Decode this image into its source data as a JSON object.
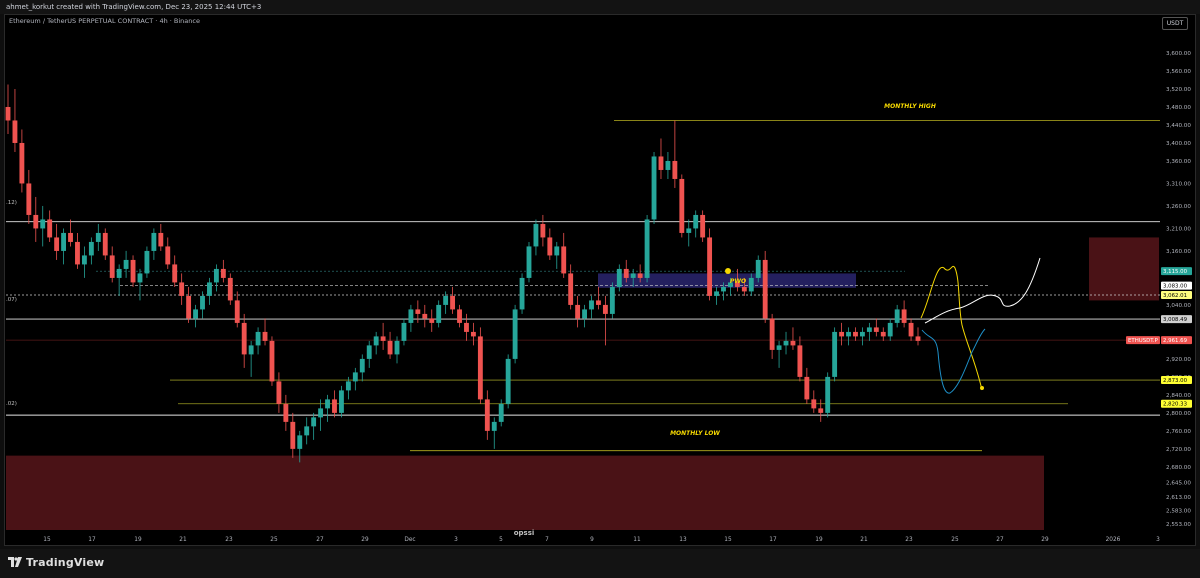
{
  "header": {
    "credit": "ahmet_korkut created with TradingView.com, Dec 23, 2025 12:44 UTC+3"
  },
  "legend": {
    "title": "Ethereum / TetherUS PERPETUAL CONTRACT · 4h · Binance"
  },
  "currency_button": "USDT",
  "footer": {
    "brand": "TradingView"
  },
  "colors": {
    "up": "#26a69a",
    "down": "#ef5350",
    "zone": "#4a1216",
    "fvg": "#2a2670",
    "level_yellow": "#cccc33",
    "background": "#000000"
  },
  "chart_data": {
    "type": "candlestick",
    "price_axis": {
      "ticks": [
        "3,600.00",
        "3,560.00",
        "3,520.00",
        "3,480.00",
        "3,440.00",
        "3,400.00",
        "3,360.00",
        "3,310.00",
        "3,260.00",
        "3,210.00",
        "3,160.00",
        "3,040.00",
        "2,920.00",
        "2,880.00",
        "2,840.00",
        "2,800.00",
        "2,760.00",
        "2,720.00",
        "2,680.00",
        "2,645.00",
        "2,613.00",
        "2,583.00",
        "2,553.00"
      ]
    },
    "time_axis": {
      "ticks": [
        "15",
        "17",
        "19",
        "21",
        "23",
        "25",
        "27",
        "29",
        "Dec",
        "3",
        "5",
        "7",
        "9",
        "11",
        "13",
        "15",
        "17",
        "19",
        "21",
        "23",
        "25",
        "27",
        "29",
        "2026",
        "3"
      ]
    },
    "price_labels": [
      {
        "text": "3,115.00",
        "color": "#26a69a"
      },
      {
        "text": "3,083.00",
        "color": "#ffffff"
      },
      {
        "text": "3,062.01",
        "color": "#ffff80"
      },
      {
        "text": "3,008.49",
        "color": "#d0d0d0"
      },
      {
        "text": "ETHUSDT.P",
        "color": "#ef5350"
      },
      {
        "text": "2,961.69",
        "color": "#ef5350"
      },
      {
        "text": "2,873.00",
        "color": "#ffff33"
      },
      {
        "text": "2,820.33",
        "color": "#ffff33"
      }
    ],
    "left_cut_labels": [
      ".12)",
      ".07)",
      ".02)"
    ],
    "annotations": {
      "monthly_high": "MONTHLY HIGH",
      "monthly_low": "MONTHLY LOW",
      "pwo": "PWO",
      "bottom_cut": "opssi"
    },
    "levels": {
      "monthly_high": 3450,
      "monthly_low": 2716,
      "white_top": 3225,
      "white_mid": 3008.49,
      "white_low": 2795,
      "yellow_upper": 2873,
      "yellow_lower": 2820.33,
      "dotted": 3062.01,
      "dashed_teal": 3115,
      "red_thin": 2961.69,
      "fvg_top": 3110,
      "fvg_bottom": 3078
    },
    "candles": [
      [
        3480,
        3530,
        3420,
        3450
      ],
      [
        3450,
        3520,
        3380,
        3400
      ],
      [
        3400,
        3430,
        3290,
        3310
      ],
      [
        3310,
        3340,
        3220,
        3240
      ],
      [
        3240,
        3280,
        3180,
        3210
      ],
      [
        3210,
        3260,
        3170,
        3230
      ],
      [
        3230,
        3250,
        3180,
        3190
      ],
      [
        3190,
        3220,
        3140,
        3160
      ],
      [
        3160,
        3210,
        3130,
        3200
      ],
      [
        3200,
        3230,
        3170,
        3180
      ],
      [
        3180,
        3200,
        3120,
        3130
      ],
      [
        3130,
        3170,
        3100,
        3150
      ],
      [
        3150,
        3190,
        3130,
        3180
      ],
      [
        3180,
        3220,
        3160,
        3200
      ],
      [
        3200,
        3210,
        3140,
        3150
      ],
      [
        3150,
        3170,
        3090,
        3100
      ],
      [
        3100,
        3130,
        3060,
        3120
      ],
      [
        3120,
        3160,
        3100,
        3140
      ],
      [
        3140,
        3150,
        3080,
        3090
      ],
      [
        3090,
        3120,
        3050,
        3110
      ],
      [
        3110,
        3170,
        3100,
        3160
      ],
      [
        3160,
        3210,
        3140,
        3200
      ],
      [
        3200,
        3220,
        3160,
        3170
      ],
      [
        3170,
        3190,
        3120,
        3130
      ],
      [
        3130,
        3150,
        3080,
        3090
      ],
      [
        3090,
        3110,
        3040,
        3060
      ],
      [
        3060,
        3080,
        3000,
        3010
      ],
      [
        3010,
        3040,
        2990,
        3030
      ],
      [
        3030,
        3070,
        3010,
        3060
      ],
      [
        3060,
        3100,
        3040,
        3090
      ],
      [
        3090,
        3130,
        3070,
        3120
      ],
      [
        3120,
        3140,
        3090,
        3100
      ],
      [
        3100,
        3110,
        3040,
        3050
      ],
      [
        3050,
        3070,
        2990,
        3000
      ],
      [
        3000,
        3020,
        2900,
        2930
      ],
      [
        2930,
        2960,
        2880,
        2950
      ],
      [
        2950,
        2990,
        2930,
        2980
      ],
      [
        2980,
        3010,
        2950,
        2960
      ],
      [
        2960,
        2970,
        2860,
        2870
      ],
      [
        2870,
        2890,
        2800,
        2820
      ],
      [
        2820,
        2840,
        2760,
        2780
      ],
      [
        2780,
        2800,
        2700,
        2720
      ],
      [
        2720,
        2760,
        2690,
        2750
      ],
      [
        2750,
        2790,
        2730,
        2770
      ],
      [
        2770,
        2800,
        2740,
        2790
      ],
      [
        2790,
        2830,
        2760,
        2810
      ],
      [
        2810,
        2840,
        2780,
        2830
      ],
      [
        2830,
        2850,
        2790,
        2800
      ],
      [
        2800,
        2860,
        2790,
        2850
      ],
      [
        2850,
        2880,
        2830,
        2870
      ],
      [
        2870,
        2900,
        2850,
        2890
      ],
      [
        2890,
        2930,
        2870,
        2920
      ],
      [
        2920,
        2960,
        2900,
        2950
      ],
      [
        2950,
        2980,
        2930,
        2970
      ],
      [
        2970,
        3000,
        2940,
        2960
      ],
      [
        2960,
        2980,
        2920,
        2930
      ],
      [
        2930,
        2970,
        2910,
        2960
      ],
      [
        2960,
        3010,
        2950,
        3000
      ],
      [
        3000,
        3040,
        2980,
        3030
      ],
      [
        3030,
        3050,
        3000,
        3020
      ],
      [
        3020,
        3040,
        2990,
        3010
      ],
      [
        3010,
        3030,
        2980,
        3000
      ],
      [
        3000,
        3050,
        2990,
        3040
      ],
      [
        3040,
        3070,
        3020,
        3060
      ],
      [
        3060,
        3080,
        3020,
        3030
      ],
      [
        3030,
        3040,
        2990,
        3000
      ],
      [
        3000,
        3020,
        2960,
        2980
      ],
      [
        2980,
        3000,
        2950,
        2970
      ],
      [
        2970,
        2990,
        2820,
        2830
      ],
      [
        2830,
        2850,
        2740,
        2760
      ],
      [
        2760,
        2790,
        2720,
        2780
      ],
      [
        2780,
        2830,
        2770,
        2820
      ],
      [
        2820,
        2930,
        2810,
        2920
      ],
      [
        2920,
        3040,
        2910,
        3030
      ],
      [
        3030,
        3110,
        3020,
        3100
      ],
      [
        3100,
        3180,
        3090,
        3170
      ],
      [
        3170,
        3230,
        3150,
        3220
      ],
      [
        3220,
        3240,
        3170,
        3190
      ],
      [
        3190,
        3210,
        3140,
        3150
      ],
      [
        3150,
        3180,
        3120,
        3170
      ],
      [
        3170,
        3200,
        3100,
        3110
      ],
      [
        3110,
        3130,
        3030,
        3040
      ],
      [
        3040,
        3060,
        2990,
        3010
      ],
      [
        3010,
        3040,
        2990,
        3030
      ],
      [
        3030,
        3060,
        3010,
        3050
      ],
      [
        3050,
        3080,
        3030,
        3040
      ],
      [
        3040,
        3060,
        2950,
        3020
      ],
      [
        3020,
        3090,
        3010,
        3080
      ],
      [
        3080,
        3130,
        3070,
        3120
      ],
      [
        3120,
        3140,
        3090,
        3100
      ],
      [
        3100,
        3120,
        3080,
        3110
      ],
      [
        3110,
        3130,
        3090,
        3100
      ],
      [
        3100,
        3240,
        3090,
        3230
      ],
      [
        3230,
        3380,
        3220,
        3370
      ],
      [
        3370,
        3410,
        3320,
        3340
      ],
      [
        3340,
        3380,
        3320,
        3360
      ],
      [
        3360,
        3450,
        3300,
        3320
      ],
      [
        3320,
        3330,
        3190,
        3200
      ],
      [
        3200,
        3230,
        3170,
        3210
      ],
      [
        3210,
        3250,
        3190,
        3240
      ],
      [
        3240,
        3250,
        3180,
        3190
      ],
      [
        3190,
        3210,
        3050,
        3060
      ],
      [
        3060,
        3080,
        3040,
        3070
      ],
      [
        3070,
        3090,
        3050,
        3080
      ],
      [
        3080,
        3100,
        3060,
        3090
      ],
      [
        3090,
        3120,
        3070,
        3080
      ],
      [
        3080,
        3100,
        3060,
        3070
      ],
      [
        3070,
        3110,
        3060,
        3100
      ],
      [
        3100,
        3150,
        3090,
        3140
      ],
      [
        3140,
        3160,
        3000,
        3010
      ],
      [
        3010,
        3020,
        2920,
        2940
      ],
      [
        2940,
        2960,
        2900,
        2950
      ],
      [
        2950,
        2980,
        2930,
        2960
      ],
      [
        2960,
        2990,
        2940,
        2950
      ],
      [
        2950,
        2970,
        2870,
        2880
      ],
      [
        2880,
        2900,
        2820,
        2830
      ],
      [
        2830,
        2850,
        2800,
        2810
      ],
      [
        2810,
        2830,
        2780,
        2800
      ],
      [
        2800,
        2890,
        2790,
        2880
      ],
      [
        2880,
        2990,
        2870,
        2980
      ],
      [
        2980,
        3000,
        2950,
        2970
      ],
      [
        2970,
        2990,
        2950,
        2980
      ],
      [
        2980,
        2990,
        2960,
        2970
      ],
      [
        2970,
        2990,
        2950,
        2980
      ],
      [
        2980,
        3000,
        2960,
        2990
      ],
      [
        2990,
        3010,
        2970,
        2980
      ],
      [
        2980,
        2990,
        2960,
        2970
      ],
      [
        2970,
        3010,
        2960,
        3000
      ],
      [
        3000,
        3040,
        2990,
        3030
      ],
      [
        3030,
        3050,
        2990,
        3000
      ],
      [
        3000,
        3010,
        2960,
        2970
      ],
      [
        2970,
        2990,
        2950,
        2960
      ]
    ]
  }
}
